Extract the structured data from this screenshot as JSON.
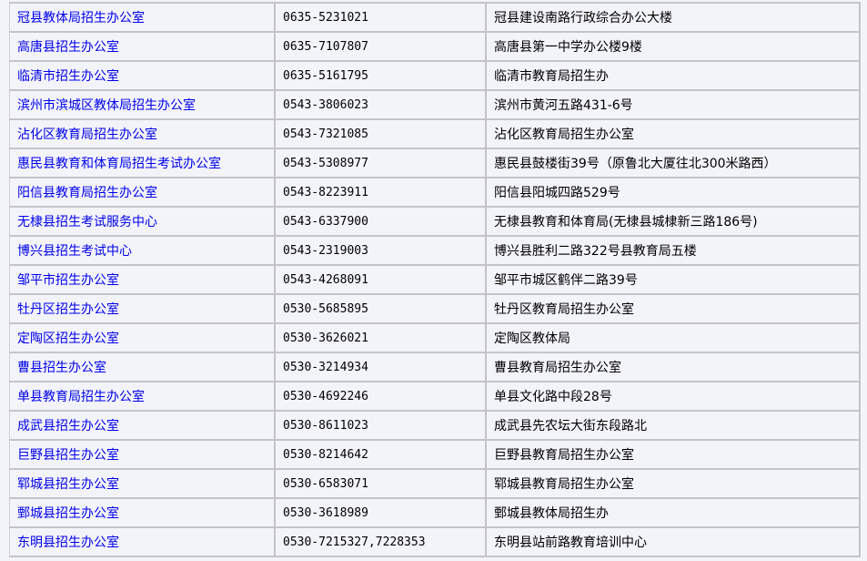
{
  "colors": {
    "link": "#0000ee",
    "background": "#f3f4fa",
    "border": "#c4c4c8"
  },
  "rows": [
    {
      "name": "冠县教体局招生办公室",
      "phone": "0635-5231021",
      "address": "冠县建设南路行政综合办公大楼"
    },
    {
      "name": "高唐县招生办公室",
      "phone": "0635-7107807",
      "address": "高唐县第一中学办公楼9楼"
    },
    {
      "name": "临清市招生办公室",
      "phone": "0635-5161795",
      "address": "临清市教育局招生办"
    },
    {
      "name": "滨州市滨城区教体局招生办公室",
      "phone": "0543-3806023",
      "address": "滨州市黄河五路431-6号"
    },
    {
      "name": "沾化区教育局招生办公室",
      "phone": "0543-7321085",
      "address": "沾化区教育局招生办公室"
    },
    {
      "name": "惠民县教育和体育局招生考试办公室",
      "phone": "0543-5308977",
      "address": "惠民县鼓楼街39号（原鲁北大厦往北300米路西）"
    },
    {
      "name": "阳信县教育局招生办公室",
      "phone": "0543-8223911",
      "address": "阳信县阳城四路529号"
    },
    {
      "name": "无棣县招生考试服务中心",
      "phone": "0543-6337900",
      "address": "无棣县教育和体育局(无棣县城棣新三路186号)"
    },
    {
      "name": "博兴县招生考试中心",
      "phone": "0543-2319003",
      "address": "博兴县胜利二路322号县教育局五楼"
    },
    {
      "name": "邹平市招生办公室",
      "phone": "0543-4268091",
      "address": "邹平市城区鹤伴二路39号"
    },
    {
      "name": "牡丹区招生办公室",
      "phone": "0530-5685895",
      "address": "牡丹区教育局招生办公室"
    },
    {
      "name": "定陶区招生办公室",
      "phone": "0530-3626021",
      "address": "定陶区教体局"
    },
    {
      "name": "曹县招生办公室",
      "phone": "0530-3214934",
      "address": "曹县教育局招生办公室"
    },
    {
      "name": "单县教育局招生办公室",
      "phone": "0530-4692246",
      "address": "单县文化路中段28号"
    },
    {
      "name": "成武县招生办公室",
      "phone": "0530-8611023",
      "address": "成武县先农坛大街东段路北"
    },
    {
      "name": "巨野县招生办公室",
      "phone": "0530-8214642",
      "address": "巨野县教育局招生办公室"
    },
    {
      "name": "郓城县招生办公室",
      "phone": "0530-6583071",
      "address": "郓城县教育局招生办公室"
    },
    {
      "name": "鄄城县招生办公室",
      "phone": "0530-3618989",
      "address": "鄄城县教体局招生办"
    },
    {
      "name": "东明县招生办公室",
      "phone": "0530-7215327,7228353",
      "address": "东明县站前路教育培训中心"
    }
  ]
}
